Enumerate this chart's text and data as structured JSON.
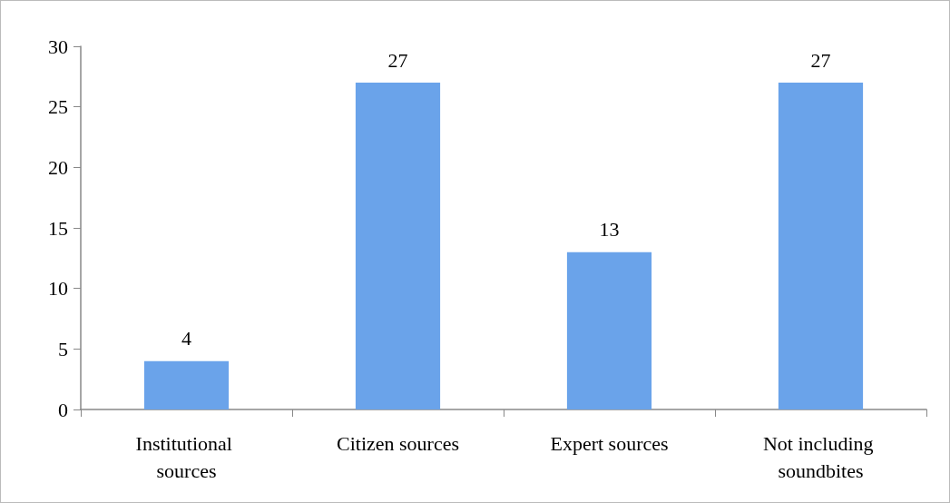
{
  "chart_data": {
    "type": "bar",
    "categories": [
      "Institutional sources",
      "Citizen sources",
      "Expert sources",
      "Not including soundbites"
    ],
    "values": [
      4,
      27,
      13,
      27
    ],
    "color": "#6aa3ea",
    "ylim": [
      0,
      30
    ],
    "yticks": [
      0,
      5,
      10,
      15,
      20,
      25,
      30
    ],
    "grid": false,
    "data_labels": true
  }
}
